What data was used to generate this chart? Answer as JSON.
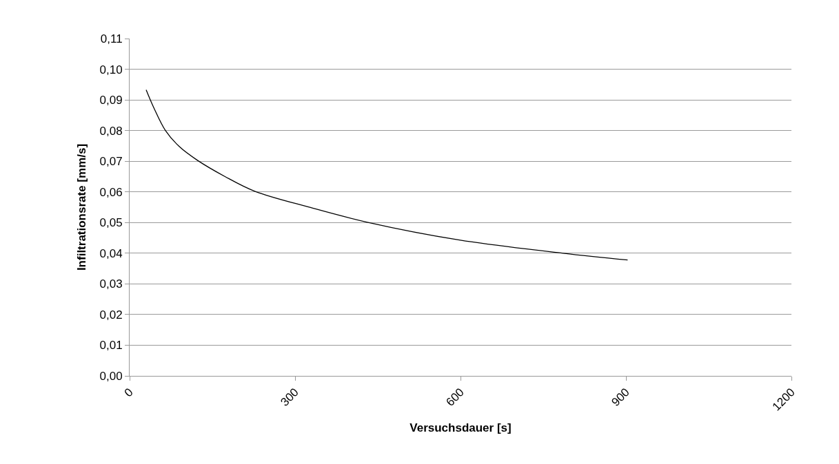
{
  "chart_data": {
    "type": "line",
    "xlabel": "Versuchsdauer [s]",
    "ylabel": "Infiltrationsrate [mm/s]",
    "x": [
      30,
      44,
      65,
      90,
      123,
      173,
      227,
      328,
      431,
      598,
      786,
      903
    ],
    "series": [
      {
        "color": "#000000",
        "values": [
          0.0933,
          0.0874,
          0.08,
          0.0748,
          0.0703,
          0.065,
          0.0602,
          0.0549,
          0.0501,
          0.0443,
          0.04,
          0.0378
        ]
      }
    ],
    "xlim": [
      0,
      1200
    ],
    "xticks": [
      0,
      300,
      600,
      900,
      1200
    ],
    "ylim": [
      0,
      0.11
    ],
    "yticks": [
      {
        "value": 0,
        "label": "0,00"
      },
      {
        "value": 0.01,
        "label": "0,01"
      },
      {
        "value": 0.02,
        "label": "0,02"
      },
      {
        "value": 0.03,
        "label": "0,03"
      },
      {
        "value": 0.04,
        "label": "0,04"
      },
      {
        "value": 0.05,
        "label": "0,05"
      },
      {
        "value": 0.06,
        "label": "0,06"
      },
      {
        "value": 0.07,
        "label": "0,07"
      },
      {
        "value": 0.08,
        "label": "0,08"
      },
      {
        "value": 0.09,
        "label": "0,09"
      },
      {
        "value": 0.1,
        "label": "0,10"
      },
      {
        "value": 0.11,
        "label": "0,11"
      }
    ],
    "grid": "y",
    "marker": "none",
    "line_style": "solid"
  }
}
